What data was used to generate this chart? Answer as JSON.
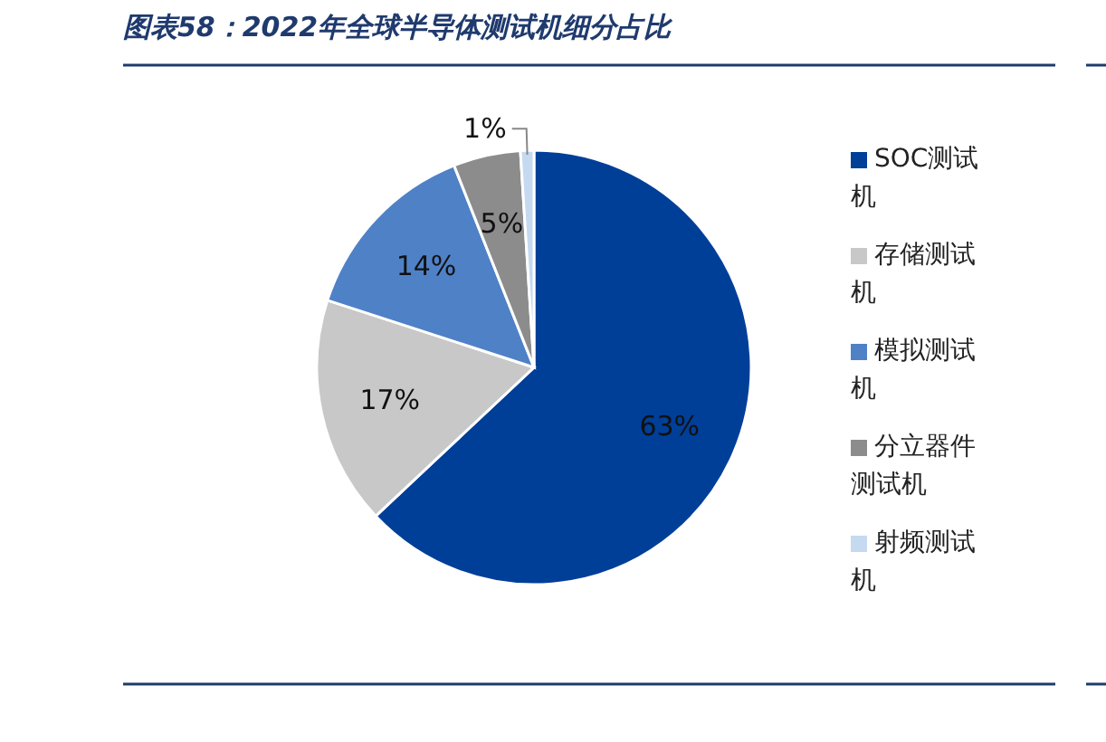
{
  "chart_data": {
    "type": "pie",
    "title": "图表58：2022年全球半导体测试机细分占比",
    "categories": [
      "SOC测试机",
      "存储测试机",
      "模拟测试机",
      "分立器件测试机",
      "射频测试机"
    ],
    "values": [
      63,
      17,
      14,
      5,
      1
    ],
    "colors": [
      "#003f98",
      "#c8c8c8",
      "#4f81c7",
      "#8c8c8c",
      "#c5d9f1"
    ],
    "value_labels": [
      "63%",
      "17%",
      "14%",
      "5%",
      "1%"
    ],
    "legend": "right"
  }
}
